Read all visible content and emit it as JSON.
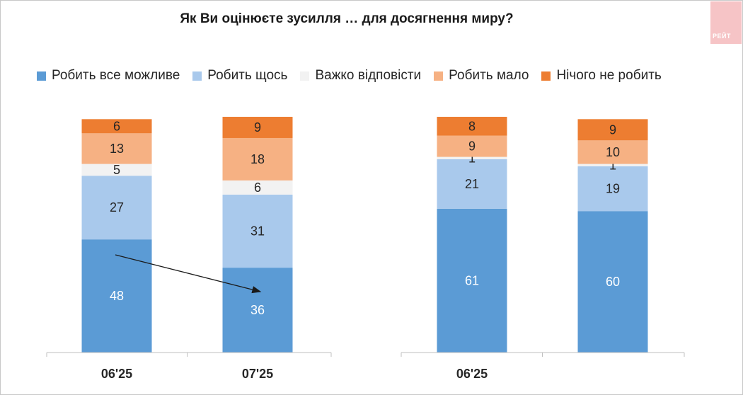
{
  "title": "Як Ви оцінюєте зусилля … для досягнення миру?",
  "logo_text": "РЕЙТ",
  "chart_data": {
    "type": "bar",
    "stacked": true,
    "ylim": [
      0,
      100
    ],
    "grid": false,
    "legend_position": "top",
    "series": [
      {
        "name": "Робить все можливе",
        "color": "#5b9bd5"
      },
      {
        "name": "Робить щось",
        "color": "#a9c9ec"
      },
      {
        "name": "Важко відповісти",
        "color": "#f2f2f2"
      },
      {
        "name": "Робить мало",
        "color": "#f6b183"
      },
      {
        "name": "Нічого не робить",
        "color": "#ed7d31"
      }
    ],
    "panels": [
      {
        "categories": [
          "06'25",
          "07'25"
        ],
        "values": [
          [
            48,
            27,
            5,
            13,
            6
          ],
          [
            36,
            31,
            6,
            18,
            9
          ]
        ]
      },
      {
        "categories": [
          "06'25",
          ""
        ],
        "values": [
          [
            61,
            21,
            1,
            9,
            8
          ],
          [
            60,
            19,
            1,
            10,
            9
          ]
        ]
      }
    ]
  }
}
